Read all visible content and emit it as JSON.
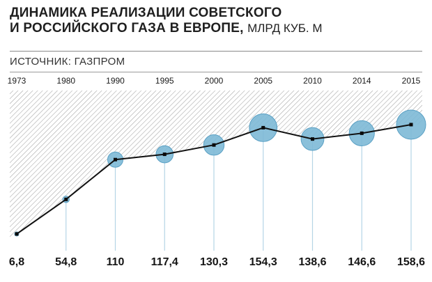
{
  "header": {
    "title_line1": "ДИНАМИКА РЕАЛИЗАЦИИ СОВЕТСКОГО",
    "title_line2": "И РОССИЙСКОГО ГАЗА В ЕВРОПЕ,",
    "unit": "МЛРД КУБ. М",
    "source": "ИСТОЧНИК: ГАЗПРОМ"
  },
  "chart_data": {
    "type": "line",
    "title": "ДИНАМИКА РЕАЛИЗАЦИИ СОВЕТСКОГО И РОССИЙСКОГО ГАЗА В ЕВРОПЕ, МЛРД КУБ. М",
    "xlabel": "",
    "ylabel": "",
    "categories": [
      "1973",
      "1980",
      "1990",
      "1995",
      "2000",
      "2005",
      "2010",
      "2014",
      "2015"
    ],
    "value_labels": [
      "6,8",
      "54,8",
      "110",
      "117,4",
      "130,3",
      "154,3",
      "138,6",
      "146,6",
      "158,6"
    ],
    "series": [
      {
        "values": [
          6.8,
          54.8,
          110,
          117.4,
          130.3,
          154.3,
          138.6,
          146.6,
          158.6
        ]
      }
    ],
    "ylim": [
      0,
      175
    ],
    "grid": false,
    "legend": "none",
    "colors": {
      "line": "#111111",
      "bubble": "#7db9d6",
      "bubble_stroke": "#5aa0c4",
      "drop_line": "#b5d5e6",
      "hatch": "#9a9a9a"
    }
  }
}
